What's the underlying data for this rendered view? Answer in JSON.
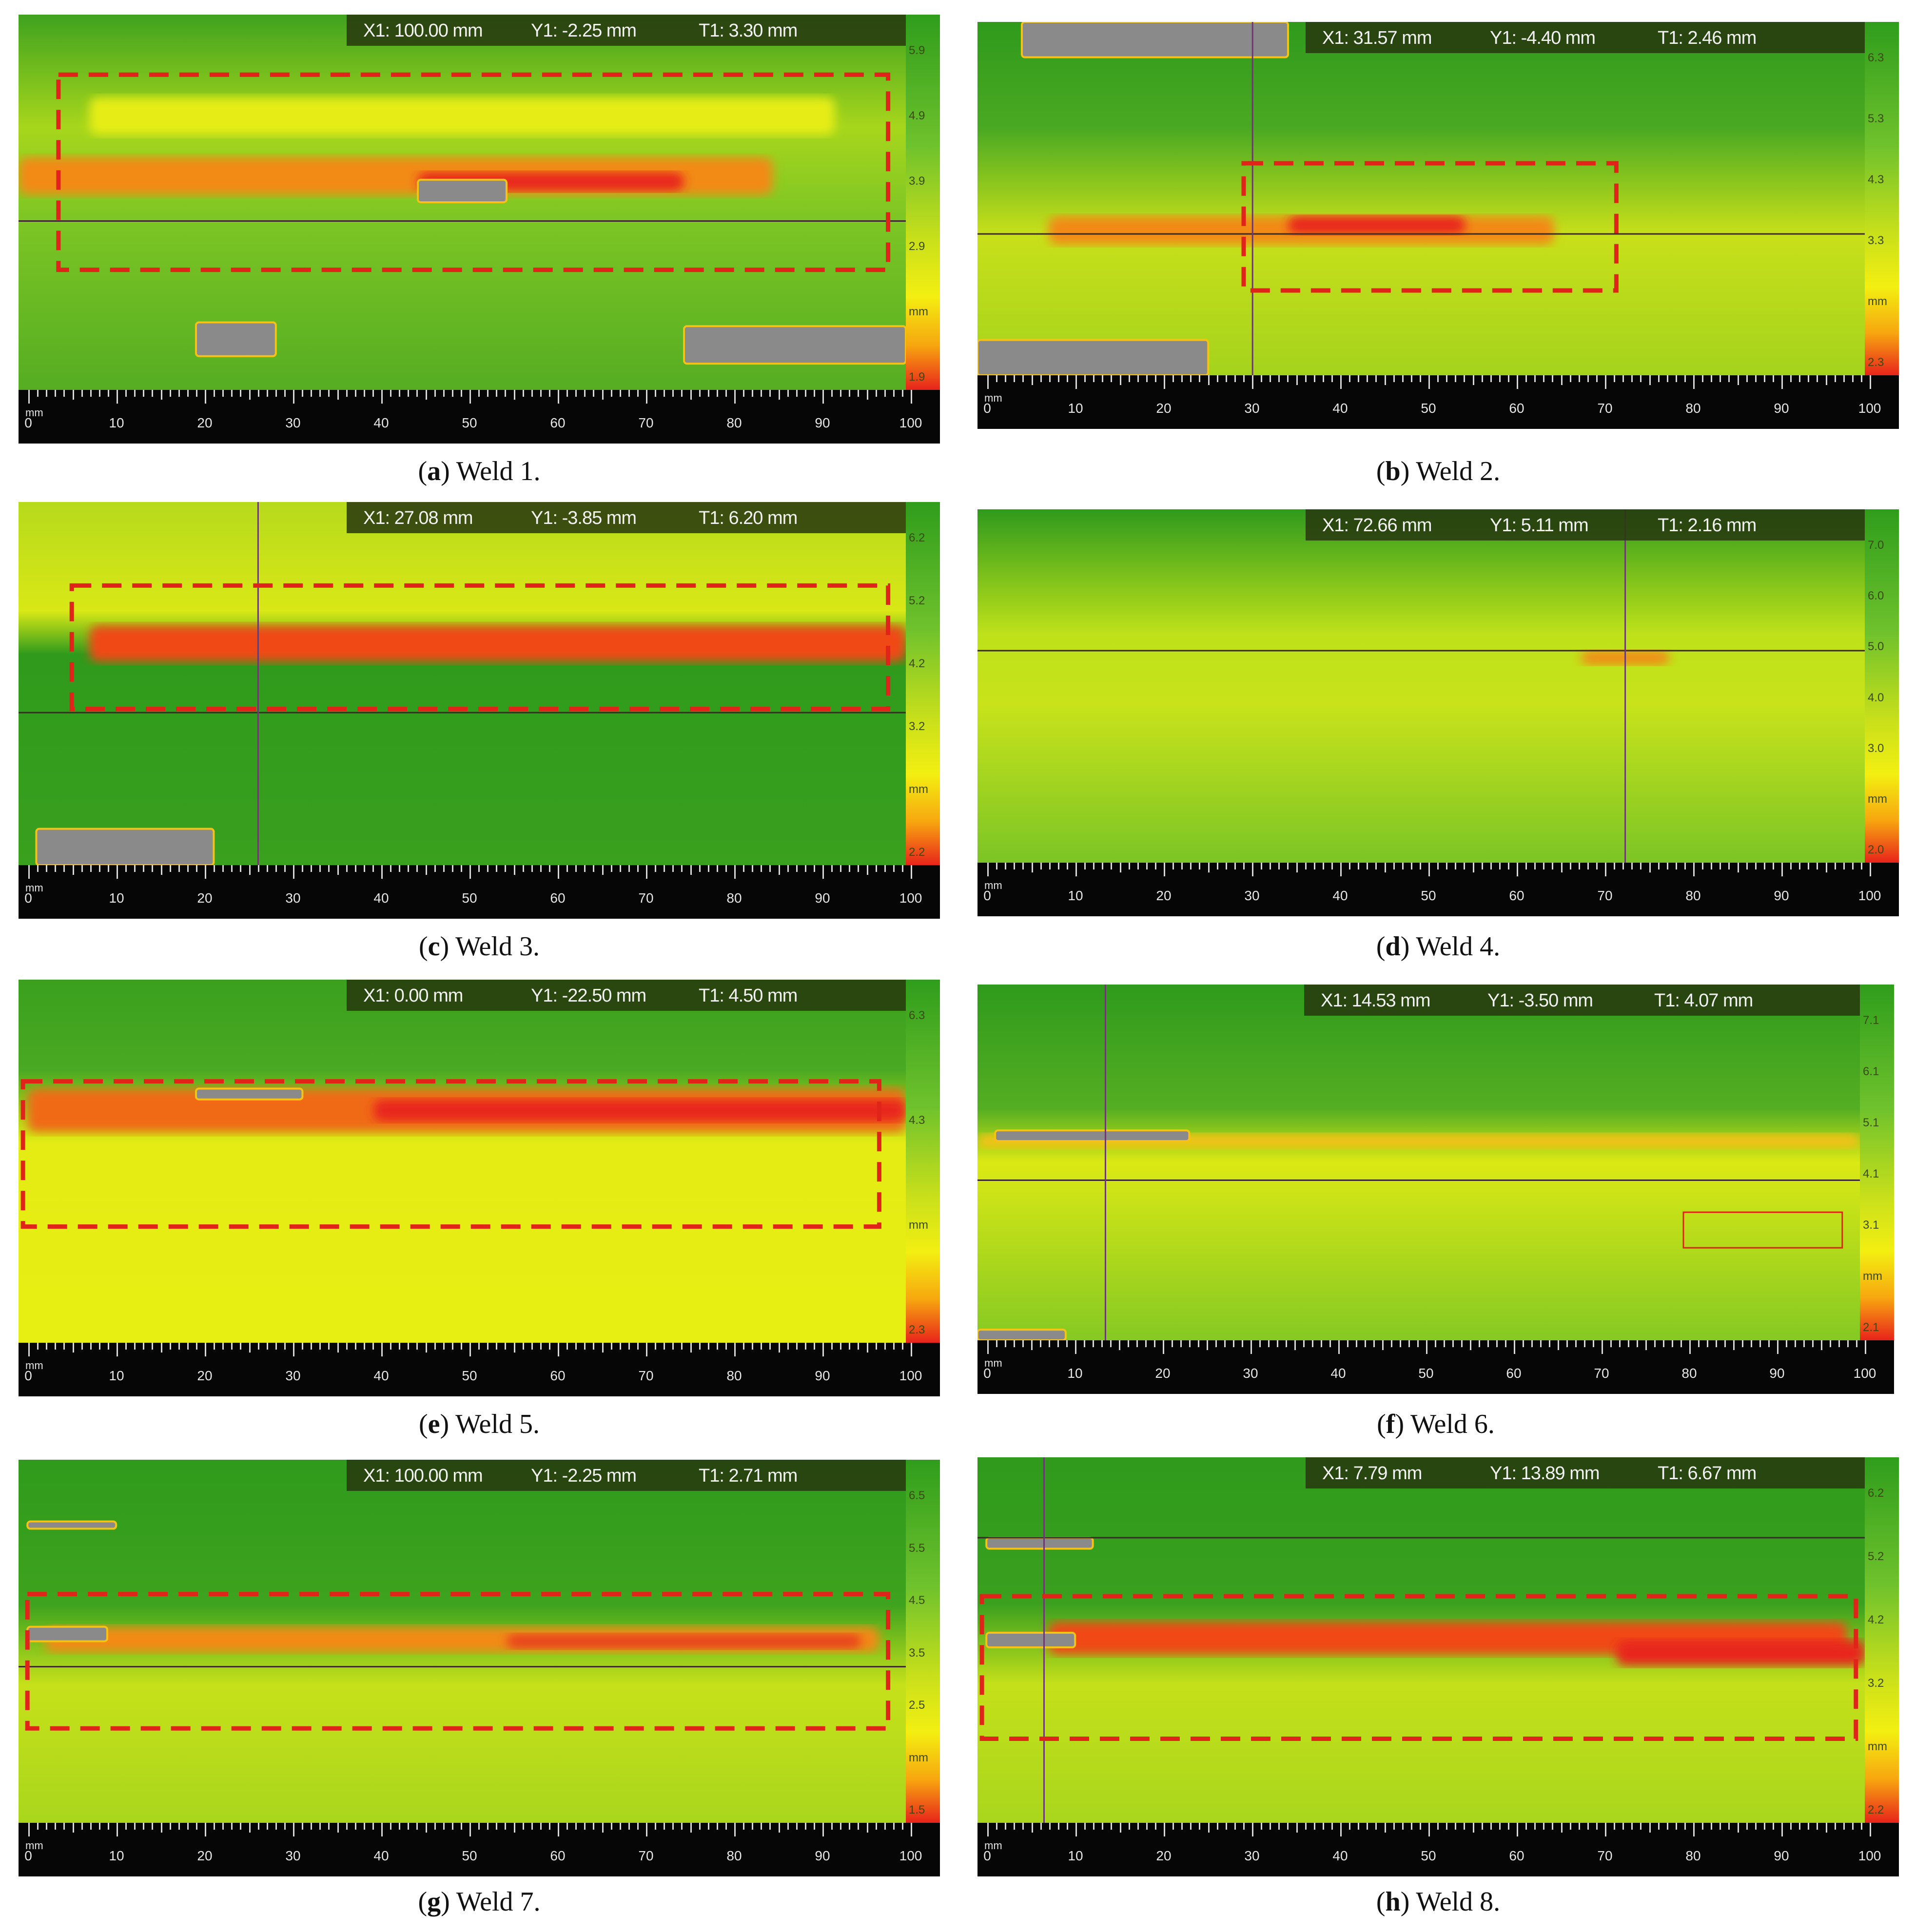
{
  "panels": [
    {
      "id": "a",
      "caption_letter": "a",
      "caption_text": "Weld 1.",
      "x1": "X1: 100.00 mm",
      "y1": "Y1: -2.25 mm",
      "t1": "T1: 3.30 mm",
      "scale": [
        "5.9",
        "4.9",
        "3.9",
        "2.9",
        "mm",
        "1.9"
      ],
      "unit": "mm",
      "ticks": [
        "0",
        "10",
        "20",
        "30",
        "40",
        "50",
        "60",
        "70",
        "80",
        "90",
        "100"
      ]
    },
    {
      "id": "b",
      "caption_letter": "b",
      "caption_text": "Weld 2.",
      "x1": "X1: 31.57 mm",
      "y1": "Y1: -4.40 mm",
      "t1": "T1: 2.46 mm",
      "scale": [
        "6.3",
        "5.3",
        "4.3",
        "3.3",
        "mm",
        "2.3"
      ],
      "unit": "mm",
      "ticks": [
        "0",
        "10",
        "20",
        "30",
        "40",
        "50",
        "60",
        "70",
        "80",
        "90",
        "100"
      ]
    },
    {
      "id": "c",
      "caption_letter": "c",
      "caption_text": "Weld 3.",
      "x1": "X1: 27.08 mm",
      "y1": "Y1: -3.85 mm",
      "t1": "T1: 6.20 mm",
      "scale": [
        "6.2",
        "5.2",
        "4.2",
        "3.2",
        "mm",
        "2.2"
      ],
      "unit": "mm",
      "ticks": [
        "0",
        "10",
        "20",
        "30",
        "40",
        "50",
        "60",
        "70",
        "80",
        "90",
        "100"
      ]
    },
    {
      "id": "d",
      "caption_letter": "d",
      "caption_text": "Weld 4.",
      "x1": "X1: 72.66 mm",
      "y1": "Y1: 5.11 mm",
      "t1": "T1: 2.16 mm",
      "scale": [
        "7.0",
        "6.0",
        "5.0",
        "4.0",
        "3.0",
        "mm",
        "2.0"
      ],
      "unit": "mm",
      "ticks": [
        "0",
        "10",
        "20",
        "30",
        "40",
        "50",
        "60",
        "70",
        "80",
        "90",
        "100"
      ]
    },
    {
      "id": "e",
      "caption_letter": "e",
      "caption_text": "Weld 5.",
      "x1": "X1: 0.00 mm",
      "y1": "Y1: -22.50 mm",
      "t1": "T1: 4.50 mm",
      "scale": [
        "6.3",
        "4.3",
        "mm",
        "2.3"
      ],
      "unit": "mm",
      "ticks": [
        "0",
        "10",
        "20",
        "30",
        "40",
        "50",
        "60",
        "70",
        "80",
        "90",
        "100"
      ]
    },
    {
      "id": "f",
      "caption_letter": "f",
      "caption_text": "Weld 6.",
      "x1": "X1: 14.53 mm",
      "y1": "Y1: -3.50 mm",
      "t1": "T1: 4.07 mm",
      "scale": [
        "7.1",
        "6.1",
        "5.1",
        "4.1",
        "3.1",
        "mm",
        "2.1"
      ],
      "unit": "mm",
      "ticks": [
        "0",
        "10",
        "20",
        "30",
        "40",
        "50",
        "60",
        "70",
        "80",
        "90",
        "100"
      ]
    },
    {
      "id": "g",
      "caption_letter": "g",
      "caption_text": "Weld 7.",
      "x1": "X1: 100.00 mm",
      "y1": "Y1: -2.25 mm",
      "t1": "T1: 2.71 mm",
      "scale": [
        "6.5",
        "5.5",
        "4.5",
        "3.5",
        "2.5",
        "mm",
        "1.5"
      ],
      "unit": "mm",
      "ticks": [
        "0",
        "10",
        "20",
        "30",
        "40",
        "50",
        "60",
        "70",
        "80",
        "90",
        "100"
      ]
    },
    {
      "id": "h",
      "caption_letter": "h",
      "caption_text": "Weld 8.",
      "x1": "X1: 7.79 mm",
      "y1": "Y1: 13.89 mm",
      "t1": "T1: 6.67 mm",
      "scale": [
        "6.2",
        "5.2",
        "4.2",
        "3.2",
        "mm",
        "2.2"
      ],
      "unit": "mm",
      "ticks": [
        "0",
        "10",
        "20",
        "30",
        "40",
        "50",
        "60",
        "70",
        "80",
        "90",
        "100"
      ]
    }
  ],
  "colors": {
    "green_dark": "#2f9a1c",
    "green": "#5fb627",
    "yellow": "#e8ef12",
    "orange": "#f59a12",
    "red": "#e8261a",
    "defect_gray": "#8a8a8a",
    "box_red": "#e0241a"
  }
}
